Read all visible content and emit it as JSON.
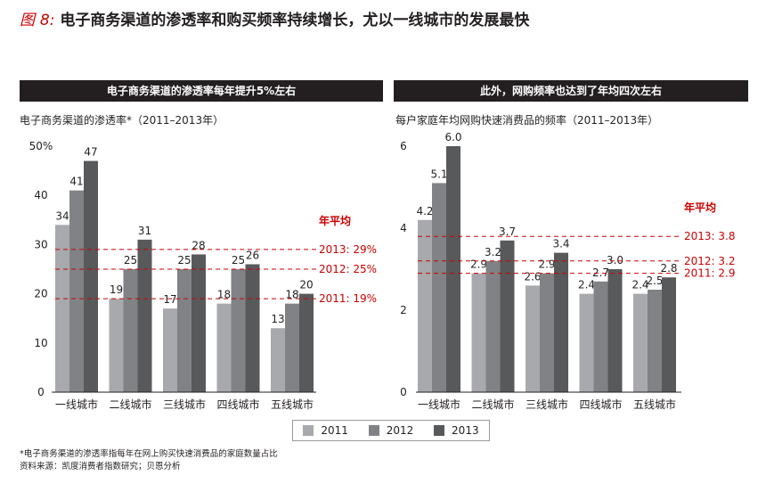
{
  "header": {
    "figure_prefix": "图",
    "figure_number": "8:",
    "title": "电子商务渠道的渗透率和购买频率持续增长，尤以一线城市的发展最快"
  },
  "colors": {
    "series": [
      "#a7a9ac",
      "#808285",
      "#58595b"
    ],
    "reference_line": "#cc0000",
    "header_bg": "#231f20"
  },
  "legend": {
    "items": [
      "2011",
      "2012",
      "2013"
    ]
  },
  "footnote": {
    "line1": "*电子商务渠道的渗透率指每年在网上购买快速消费品的家庭数量占比",
    "line2": "资料来源：凯度消费者指数研究；贝恩分析"
  },
  "chart_data": [
    {
      "type": "bar",
      "header": "电子商务渠道的渗透率每年提升5%左右",
      "title": "电子商务渠道的渗透率*（2011–2013年）",
      "categories": [
        "一线城市",
        "二线城市",
        "三线城市",
        "四线城市",
        "五线城市"
      ],
      "series": [
        {
          "name": "2011",
          "values": [
            34,
            19,
            17,
            18,
            13
          ]
        },
        {
          "name": "2012",
          "values": [
            41,
            25,
            25,
            25,
            18
          ]
        },
        {
          "name": "2013",
          "values": [
            47,
            31,
            28,
            26,
            20
          ]
        }
      ],
      "labels": [
        [
          "34",
          "19",
          "17",
          "18",
          "13"
        ],
        [
          "41",
          "25",
          "25",
          "25",
          "18"
        ],
        [
          "47",
          "31",
          "28",
          "26",
          "20"
        ]
      ],
      "ylim": [
        0,
        50
      ],
      "yticks": [
        0,
        10,
        20,
        30,
        40,
        50
      ],
      "ytick_labels": [
        "0",
        "10",
        "20",
        "30",
        "40",
        "50%"
      ],
      "reference_title": "年平均",
      "reference_lines": [
        {
          "value": 29,
          "label": "2013: 29%"
        },
        {
          "value": 25,
          "label": "2012: 25%"
        },
        {
          "value": 19,
          "label": "2011: 19%"
        }
      ]
    },
    {
      "type": "bar",
      "header": "此外，网购频率也达到了年均四次左右",
      "title": "每户家庭年均网购快速消费品的频率（2011–2013年）",
      "categories": [
        "一线城市",
        "二线城市",
        "三线城市",
        "四线城市",
        "五线城市"
      ],
      "series": [
        {
          "name": "2011",
          "values": [
            4.2,
            2.9,
            2.6,
            2.4,
            2.4
          ]
        },
        {
          "name": "2012",
          "values": [
            5.1,
            3.2,
            2.9,
            2.7,
            2.5
          ]
        },
        {
          "name": "2013",
          "values": [
            6.0,
            3.7,
            3.4,
            3.0,
            2.8
          ]
        }
      ],
      "labels": [
        [
          "4.2",
          "2.9",
          "2.6",
          "2.4",
          "2.4"
        ],
        [
          "5.1",
          "3.2",
          "2.9",
          "2.7",
          "2.5"
        ],
        [
          "6.0",
          "3.7",
          "3.4",
          "3.0",
          "2.8"
        ]
      ],
      "ylim": [
        0,
        6
      ],
      "yticks": [
        0,
        2,
        4,
        6
      ],
      "ytick_labels": [
        "0",
        "2",
        "4",
        "6"
      ],
      "reference_title": "年平均",
      "reference_lines": [
        {
          "value": 3.8,
          "label": "2013: 3.8"
        },
        {
          "value": 3.2,
          "label": "2012: 3.2"
        },
        {
          "value": 2.9,
          "label": "2011: 2.9"
        }
      ]
    }
  ]
}
